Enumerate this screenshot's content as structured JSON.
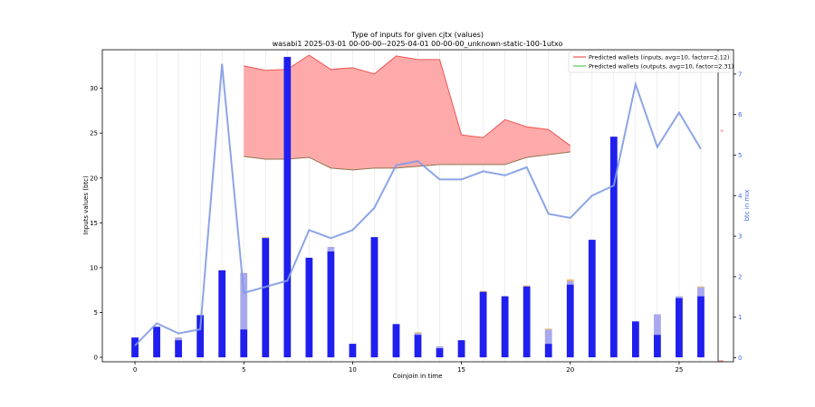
{
  "chart_data": {
    "type": "bar",
    "title": "Type of inputs for given cjtx (values)",
    "subtitle": "wasabi1 2025-03-01 00-00-00--2025-04-01 00-00-00_unknown-static-100-1utxo",
    "xlabel": "Coinjoin in time",
    "ylabel": "Inputs values (btc)",
    "ylabel_right": "btc in mix",
    "xlim": [
      -1.5,
      27.5
    ],
    "ylim": [
      -0.5,
      34.3
    ],
    "y2lim": [
      -0.1,
      7.6
    ],
    "xticks": [
      0,
      5,
      10,
      15,
      20,
      25
    ],
    "yticks": [
      0,
      5,
      10,
      15,
      20,
      25,
      30
    ],
    "y2ticks": [
      0,
      1,
      2,
      3,
      4,
      5,
      6,
      7
    ],
    "grid": "vertical",
    "legend_position": "top-right",
    "colors": {
      "bar_main": "#1010ee",
      "bar_light": "#a8a8f0",
      "bar_top": "#f0c060",
      "mix_line": "#7f9be6",
      "band_fill": "#ffaaaa",
      "band_upper": "#ee5555",
      "band_lower": "#8f7450",
      "legend_inputs": "#ee5555",
      "legend_outputs": "#55cc55"
    },
    "legend": [
      {
        "label": "Predicted wallets (inputs, avg=10, factor=2.12)",
        "color": "#ee5555"
      },
      {
        "label": "Predicted wallets (outputs, avg=10, factor=2.31)",
        "color": "#55cc55"
      }
    ],
    "right_axis_markers": [
      "wallets"
    ],
    "x": [
      0,
      1,
      2,
      3,
      4,
      5,
      6,
      7,
      8,
      9,
      10,
      11,
      12,
      13,
      14,
      15,
      16,
      17,
      18,
      19,
      20,
      21,
      22,
      23,
      24,
      25,
      26
    ],
    "series": [
      {
        "name": "",
        "kind": "bar_main",
        "values": [
          2.2,
          3.4,
          1.9,
          4.7,
          9.7,
          3.1,
          13.3,
          33.5,
          11.1,
          11.8,
          1.5,
          13.4,
          3.7,
          2.5,
          1.0,
          1.9,
          7.3,
          6.8,
          7.9,
          1.5,
          8.1,
          13.1,
          24.6,
          4.0,
          2.5,
          6.6,
          6.8
        ]
      },
      {
        "name": "",
        "kind": "bar_light",
        "values": [
          2.2,
          3.4,
          2.2,
          4.7,
          9.7,
          9.4,
          13.3,
          33.5,
          11.1,
          12.3,
          1.5,
          13.4,
          3.7,
          2.7,
          1.2,
          1.9,
          7.3,
          6.8,
          7.9,
          3.1,
          8.5,
          13.1,
          24.6,
          4.0,
          4.8,
          6.8,
          7.8
        ]
      },
      {
        "name": "",
        "kind": "bar_top",
        "values": [
          2.2,
          3.4,
          2.2,
          4.7,
          9.7,
          9.4,
          13.4,
          33.5,
          11.1,
          12.3,
          1.5,
          13.4,
          3.7,
          2.8,
          1.2,
          1.9,
          7.4,
          6.8,
          8.0,
          3.2,
          8.7,
          13.1,
          24.6,
          4.0,
          4.8,
          6.8,
          7.9
        ]
      },
      {
        "name": "",
        "kind": "mix_line",
        "axis": "right",
        "values": [
          0.3,
          0.85,
          0.6,
          0.7,
          7.25,
          1.6,
          1.75,
          1.9,
          3.15,
          2.95,
          3.15,
          3.7,
          4.75,
          4.85,
          4.4,
          4.4,
          4.6,
          4.5,
          4.7,
          3.55,
          3.45,
          4.0,
          4.25,
          6.75,
          5.2,
          6.05,
          5.15
        ]
      },
      {
        "name": "",
        "kind": "band_upper",
        "x": [
          5,
          6,
          7,
          8,
          9,
          10,
          11,
          12,
          13,
          14,
          15,
          16,
          17,
          18,
          19,
          20
        ],
        "values": [
          32.5,
          32.0,
          32.1,
          33.7,
          32.1,
          32.3,
          31.6,
          33.6,
          33.2,
          33.2,
          24.8,
          24.5,
          26.5,
          25.7,
          25.4,
          23.6
        ]
      },
      {
        "name": "",
        "kind": "band_lower",
        "x": [
          5,
          6,
          7,
          8,
          9,
          10,
          11,
          12,
          13,
          14,
          15,
          16,
          17,
          18,
          19,
          20
        ],
        "values": [
          22.4,
          22.1,
          22.1,
          22.3,
          21.1,
          20.9,
          21.1,
          21.1,
          21.3,
          21.5,
          21.5,
          21.5,
          21.5,
          22.3,
          22.6,
          22.9
        ]
      }
    ]
  }
}
